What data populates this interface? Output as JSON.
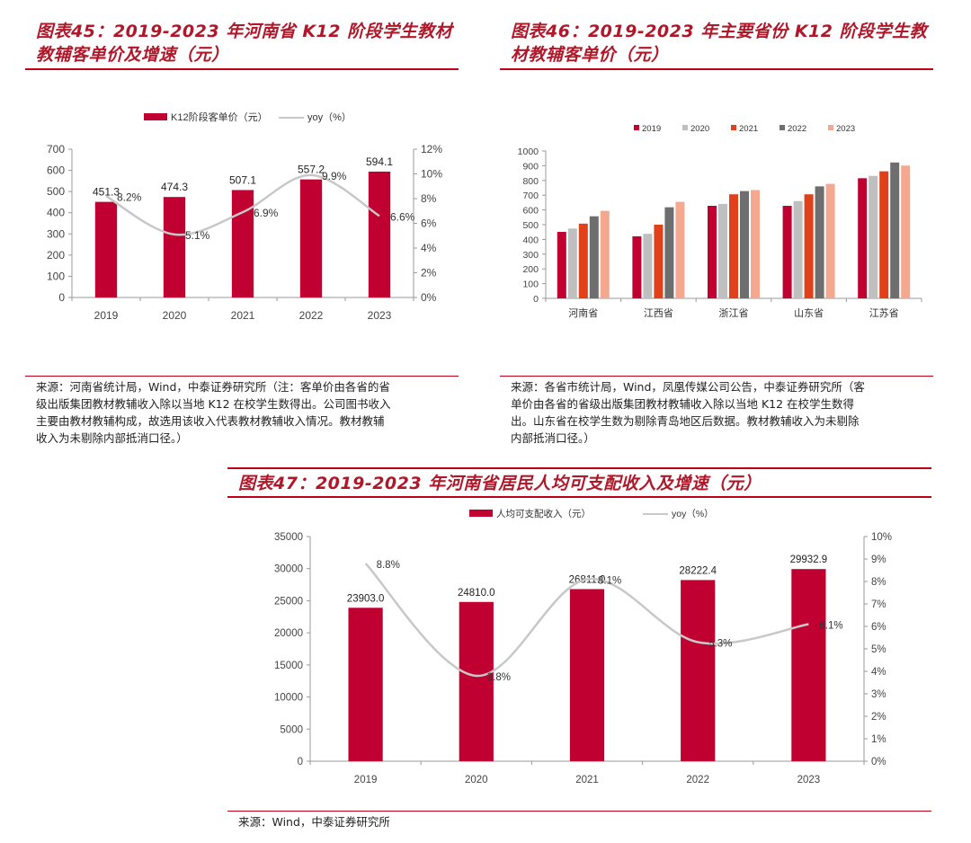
{
  "figure45": {
    "title_line1": "图表45：2019-2023 年河南省 K12 阶段学生教材",
    "title_line2": "教辅客单价及增速（元）",
    "source_lines": [
      "来源：河南省统计局，Wind，中泰证券研究所（注：客单价由各省的省",
      "级出版集团教材教辅收入除以当地 K12 在校学生数得出。公司图书收入",
      "主要由教材教辅构成，故选用该收入代表教材教辅收入情况。教材教辅",
      "收入为未剔除内部抵消口径。）"
    ]
  },
  "figure46": {
    "title_line1": "图表46：2019-2023 年主要省份 K12 阶段学生教",
    "title_line2": "材教辅客单价（元）",
    "source_lines": [
      "来源：各省市统计局，Wind，凤凰传媒公司公告，中泰证券研究所（客",
      "单价由各省的省级出版集团教材教辅收入除以当地 K12 在校学生数得",
      "出。山东省在校学生数为剔除青岛地区后数据。教材教辅收入为未剔除",
      "内部抵消口径。）"
    ]
  },
  "figure47": {
    "title": "图表47：2019-2023 年河南省居民人均可支配收入及增速（元）",
    "source": "来源：Wind，中泰证券研究所"
  },
  "colors": {
    "title_red": "#b0182a",
    "bar_red": "#c00030",
    "line_gray": "#c8c8c8",
    "s2019": "#c00030",
    "s2020": "#bfbfbf",
    "s2021": "#e0401a",
    "s2022": "#6e6e6e",
    "s2023": "#f4a890"
  },
  "chart_data": [
    {
      "type": "bar",
      "id": "fig45",
      "categories": [
        "2019",
        "2020",
        "2021",
        "2022",
        "2023"
      ],
      "series": [
        {
          "name": "K12阶段客单价（元）",
          "values": [
            451.3,
            474.3,
            507.1,
            557.2,
            594.1
          ],
          "axis": "left"
        },
        {
          "name": "yoy（%）",
          "type": "line",
          "values": [
            8.2,
            5.1,
            6.9,
            9.9,
            6.6
          ],
          "axis": "right"
        }
      ],
      "data_labels": [
        "451.3",
        "474.3",
        "507.1",
        "557.2",
        "594.1"
      ],
      "line_labels": [
        "8.2%",
        "5.1%",
        "6.9%",
        "9.9%",
        "6.6%"
      ],
      "ylim": [
        0,
        700
      ],
      "yticks": [
        "0",
        "100",
        "200",
        "300",
        "400",
        "500",
        "600",
        "700"
      ],
      "y2lim": [
        0,
        12
      ],
      "y2ticks": [
        "0%",
        "2%",
        "4%",
        "6%",
        "8%",
        "10%",
        "12%"
      ],
      "legend": "top"
    },
    {
      "type": "bar",
      "id": "fig46",
      "categories": [
        "河南省",
        "江西省",
        "浙江省",
        "山东省",
        "江苏省"
      ],
      "series": [
        {
          "name": "2019",
          "values": [
            451,
            421,
            628,
            628,
            815
          ]
        },
        {
          "name": "2020",
          "values": [
            474,
            438,
            641,
            660,
            831
          ]
        },
        {
          "name": "2021",
          "values": [
            507,
            500,
            706,
            706,
            862
          ]
        },
        {
          "name": "2022",
          "values": [
            557,
            618,
            728,
            760,
            922
          ]
        },
        {
          "name": "2023",
          "values": [
            594,
            655,
            735,
            777,
            901
          ]
        }
      ],
      "ylim": [
        0,
        1000
      ],
      "yticks": [
        "0",
        "100",
        "200",
        "300",
        "400",
        "500",
        "600",
        "700",
        "800",
        "900",
        "1000"
      ],
      "legend": "top"
    },
    {
      "type": "bar",
      "id": "fig47",
      "categories": [
        "2019",
        "2020",
        "2021",
        "2022",
        "2023"
      ],
      "series": [
        {
          "name": "人均可支配收入（元）",
          "values": [
            23903.0,
            24810.0,
            26811.0,
            28222.4,
            29932.9
          ],
          "axis": "left"
        },
        {
          "name": "yoy（%）",
          "type": "line",
          "values": [
            8.8,
            3.8,
            8.1,
            5.3,
            6.1
          ],
          "axis": "right"
        }
      ],
      "data_labels": [
        "23903.0",
        "24810.0",
        "26811.0",
        "28222.4",
        "29932.9"
      ],
      "line_labels": [
        "8.8%",
        "3.8%",
        "8.1%",
        "5.3%",
        "6.1%"
      ],
      "ylim": [
        0,
        35000
      ],
      "yticks": [
        "0",
        "5000",
        "10000",
        "15000",
        "20000",
        "25000",
        "30000",
        "35000"
      ],
      "y2lim": [
        0,
        10
      ],
      "y2ticks": [
        "0%",
        "1%",
        "2%",
        "3%",
        "4%",
        "5%",
        "6%",
        "7%",
        "8%",
        "9%",
        "10%"
      ],
      "legend": "top"
    }
  ]
}
